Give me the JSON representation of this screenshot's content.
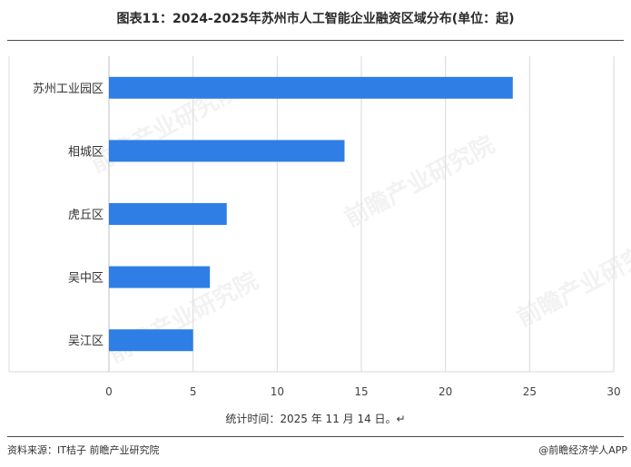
{
  "title": "图表11：2024-2025年苏州市人工智能企业融资区域分布(单位：起)",
  "note": "统计时间：2025 年 11 月 14 日。↵",
  "source": "资料来源：IT桔子 前瞻产业研究院",
  "credit": "@前瞻经济学人APP",
  "watermark": "前瞻产业研究院",
  "colors": {
    "bar": "#2e7ee6",
    "grid": "#d9d9d9",
    "axis": "#bfbfbf"
  },
  "chart_data": {
    "type": "bar",
    "orientation": "horizontal",
    "title": "图表11：2024-2025年苏州市人工智能企业融资区域分布(单位：起)",
    "categories": [
      "苏州工业园区",
      "相城区",
      "虎丘区",
      "吴中区",
      "吴江区"
    ],
    "values": [
      24,
      14,
      7,
      6,
      5
    ],
    "xlim": [
      0,
      30
    ],
    "xticks": [
      0,
      5,
      10,
      15,
      20,
      25,
      30
    ],
    "grid": true,
    "legend": "none"
  }
}
